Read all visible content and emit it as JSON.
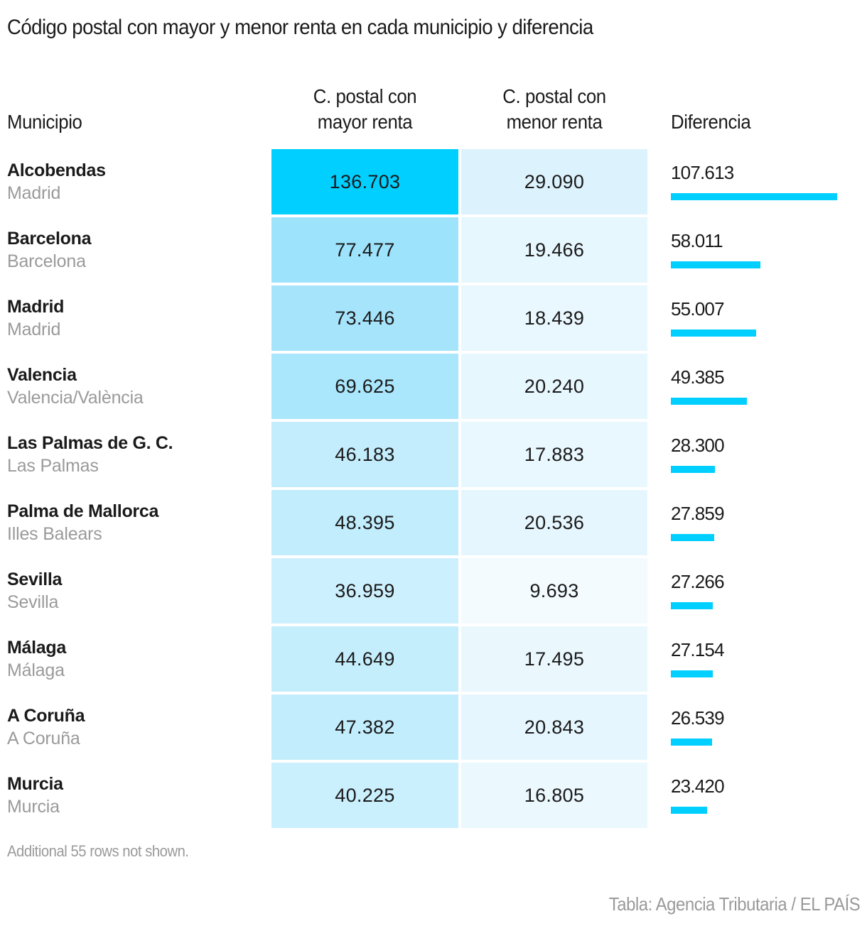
{
  "title": "Código postal con mayor y menor renta en cada municipio y diferencia",
  "headers": {
    "municipio": "Municipio",
    "high_line1": "C. postal con",
    "high_line2": "mayor renta",
    "low_line1": "C. postal con",
    "low_line2": "menor renta",
    "diferencia": "Diferencia"
  },
  "colors": {
    "bar": "#00CFFF",
    "high_scale_max": "#00CFFF",
    "low_scale": "#DCF3FD"
  },
  "chart_data": {
    "type": "table",
    "title": "Código postal con mayor y menor renta en cada municipio y diferencia",
    "columns": [
      "Municipio",
      "C. postal con mayor renta",
      "C. postal con menor renta",
      "Diferencia"
    ],
    "rows": [
      {
        "municipio": "Alcobendas",
        "provincia": "Madrid",
        "mayor": 136703,
        "menor": 29090,
        "diferencia": 107613,
        "mayor_label": "136.703",
        "menor_label": "29.090",
        "diferencia_label": "107.613"
      },
      {
        "municipio": "Barcelona",
        "provincia": "Barcelona",
        "mayor": 77477,
        "menor": 19466,
        "diferencia": 58011,
        "mayor_label": "77.477",
        "menor_label": "19.466",
        "diferencia_label": "58.011"
      },
      {
        "municipio": "Madrid",
        "provincia": "Madrid",
        "mayor": 73446,
        "menor": 18439,
        "diferencia": 55007,
        "mayor_label": "73.446",
        "menor_label": "18.439",
        "diferencia_label": "55.007"
      },
      {
        "municipio": "Valencia",
        "provincia": "Valencia/València",
        "mayor": 69625,
        "menor": 20240,
        "diferencia": 49385,
        "mayor_label": "69.625",
        "menor_label": "20.240",
        "diferencia_label": "49.385"
      },
      {
        "municipio": "Las Palmas de G. C.",
        "provincia": "Las Palmas",
        "mayor": 46183,
        "menor": 17883,
        "diferencia": 28300,
        "mayor_label": "46.183",
        "menor_label": "17.883",
        "diferencia_label": "28.300"
      },
      {
        "municipio": "Palma de Mallorca",
        "provincia": "Illes Balears",
        "mayor": 48395,
        "menor": 20536,
        "diferencia": 27859,
        "mayor_label": "48.395",
        "menor_label": "20.536",
        "diferencia_label": "27.859"
      },
      {
        "municipio": "Sevilla",
        "provincia": "Sevilla",
        "mayor": 36959,
        "menor": 9693,
        "diferencia": 27266,
        "mayor_label": "36.959",
        "menor_label": "9.693",
        "diferencia_label": "27.266"
      },
      {
        "municipio": "Málaga",
        "provincia": "Málaga",
        "mayor": 44649,
        "menor": 17495,
        "diferencia": 27154,
        "mayor_label": "44.649",
        "menor_label": "17.495",
        "diferencia_label": "27.154"
      },
      {
        "municipio": "A Coruña",
        "provincia": "A Coruña",
        "mayor": 47382,
        "menor": 20843,
        "diferencia": 26539,
        "mayor_label": "47.382",
        "menor_label": "20.843",
        "diferencia_label": "26.539"
      },
      {
        "municipio": "Murcia",
        "provincia": "Murcia",
        "mayor": 40225,
        "menor": 16805,
        "diferencia": 23420,
        "mayor_label": "40.225",
        "menor_label": "16.805",
        "diferencia_label": "23.420"
      }
    ],
    "diferencia_max": 107613
  },
  "note": "Additional 55 rows not shown.",
  "source": "Tabla: Agencia Tributaria / EL PAÍS"
}
